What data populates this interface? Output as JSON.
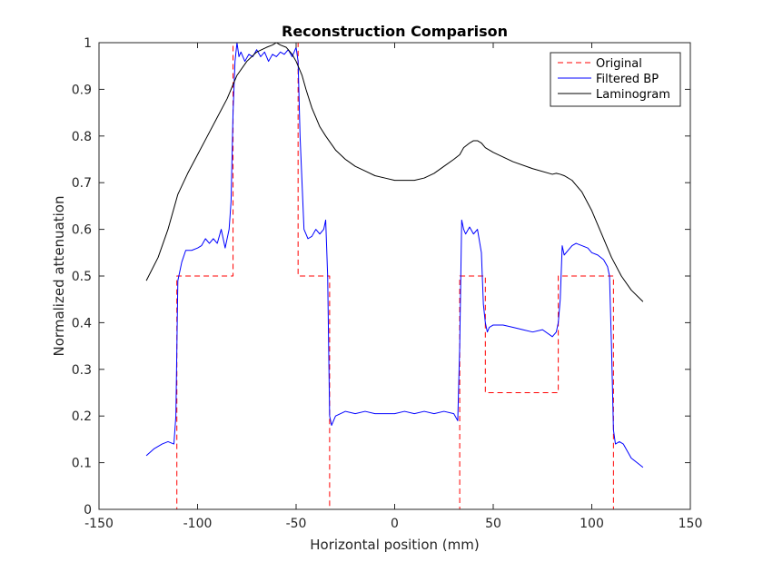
{
  "chart_data": {
    "type": "line",
    "title": "Reconstruction Comparison",
    "xlabel": "Horizontal position (mm)",
    "ylabel": "Normalized attenuation",
    "xlim": [
      -150,
      150
    ],
    "ylim": [
      0,
      1
    ],
    "xticks": [
      -150,
      -100,
      -50,
      0,
      50,
      100,
      150
    ],
    "yticks": [
      0,
      0.1,
      0.2,
      0.3,
      0.4,
      0.5,
      0.6,
      0.7,
      0.8,
      0.9,
      1
    ],
    "xtick_labels": [
      "-150",
      "-100",
      "-50",
      "0",
      "50",
      "100",
      "150"
    ],
    "ytick_labels": [
      "0",
      "0.1",
      "0.2",
      "0.3",
      "0.4",
      "0.5",
      "0.6",
      "0.7",
      "0.8",
      "0.9",
      "1"
    ],
    "grid": false,
    "legend_position": "top-right",
    "series": [
      {
        "name": "Original",
        "color": "#ff0000",
        "style": "dashed",
        "x": [
          -126,
          -110.5,
          -110.5,
          -82,
          -82,
          -49,
          -49,
          -33,
          -33,
          33,
          33,
          46,
          46,
          83,
          83,
          111,
          111,
          126
        ],
        "y": [
          0,
          0,
          0.5,
          0.5,
          1,
          1,
          0.5,
          0.5,
          0,
          0,
          0.5,
          0.5,
          0.25,
          0.25,
          0.5,
          0.5,
          0,
          0
        ]
      },
      {
        "name": "Filtered BP",
        "color": "#0000ff",
        "style": "solid",
        "x": [
          -126,
          -122,
          -118,
          -115,
          -112,
          -111,
          -110,
          -108,
          -106,
          -103,
          -100,
          -98,
          -96,
          -94,
          -92,
          -90,
          -88,
          -86,
          -84,
          -83,
          -82,
          -81,
          -80,
          -79,
          -78,
          -76,
          -74,
          -72,
          -70,
          -68,
          -66,
          -64,
          -62,
          -60,
          -58,
          -56,
          -54,
          -52,
          -51,
          -50,
          -49,
          -48,
          -47,
          -46,
          -45,
          -44,
          -42,
          -40,
          -38,
          -36,
          -35,
          -34,
          -33,
          -32,
          -30,
          -25,
          -20,
          -15,
          -10,
          -5,
          0,
          5,
          10,
          15,
          20,
          25,
          30,
          32,
          33,
          34,
          35,
          36,
          38,
          40,
          42,
          44,
          45,
          46,
          47,
          48,
          50,
          55,
          60,
          65,
          70,
          75,
          80,
          82,
          83,
          84,
          85,
          86,
          88,
          90,
          92,
          95,
          98,
          100,
          103,
          106,
          108,
          109,
          110,
          111,
          112,
          114,
          116,
          118,
          120,
          123,
          126
        ],
        "y": [
          0.115,
          0.13,
          0.14,
          0.145,
          0.14,
          0.2,
          0.49,
          0.53,
          0.555,
          0.555,
          0.56,
          0.565,
          0.58,
          0.57,
          0.58,
          0.57,
          0.6,
          0.56,
          0.6,
          0.66,
          0.85,
          0.96,
          1.0,
          0.97,
          0.98,
          0.96,
          0.975,
          0.97,
          0.985,
          0.97,
          0.98,
          0.96,
          0.975,
          0.97,
          0.98,
          0.975,
          0.985,
          0.97,
          0.98,
          0.99,
          0.96,
          0.8,
          0.7,
          0.6,
          0.59,
          0.58,
          0.585,
          0.6,
          0.59,
          0.6,
          0.62,
          0.5,
          0.2,
          0.18,
          0.2,
          0.21,
          0.205,
          0.21,
          0.205,
          0.205,
          0.205,
          0.21,
          0.205,
          0.21,
          0.205,
          0.21,
          0.205,
          0.19,
          0.35,
          0.62,
          0.6,
          0.59,
          0.605,
          0.59,
          0.6,
          0.55,
          0.44,
          0.4,
          0.38,
          0.39,
          0.395,
          0.395,
          0.39,
          0.385,
          0.38,
          0.385,
          0.37,
          0.38,
          0.4,
          0.45,
          0.565,
          0.545,
          0.555,
          0.565,
          0.57,
          0.565,
          0.56,
          0.55,
          0.545,
          0.535,
          0.52,
          0.5,
          0.35,
          0.17,
          0.14,
          0.145,
          0.14,
          0.125,
          0.11,
          0.1,
          0.09
        ]
      },
      {
        "name": "Laminogram",
        "color": "#000000",
        "style": "solid",
        "x": [
          -126,
          -120,
          -115,
          -110,
          -105,
          -100,
          -95,
          -90,
          -85,
          -80,
          -75,
          -70,
          -65,
          -62,
          -60,
          -58,
          -55,
          -52,
          -50,
          -47,
          -45,
          -42,
          -40,
          -38,
          -35,
          -30,
          -25,
          -20,
          -15,
          -10,
          -5,
          0,
          5,
          10,
          15,
          20,
          25,
          30,
          33,
          35,
          38,
          40,
          42,
          44,
          46,
          50,
          60,
          70,
          80,
          82,
          84,
          86,
          90,
          95,
          100,
          105,
          110,
          115,
          120,
          126
        ],
        "y": [
          0.49,
          0.54,
          0.6,
          0.675,
          0.72,
          0.76,
          0.8,
          0.84,
          0.88,
          0.93,
          0.96,
          0.98,
          0.99,
          0.995,
          1.0,
          0.995,
          0.99,
          0.975,
          0.96,
          0.93,
          0.9,
          0.86,
          0.84,
          0.82,
          0.8,
          0.77,
          0.75,
          0.735,
          0.725,
          0.715,
          0.71,
          0.705,
          0.705,
          0.705,
          0.71,
          0.72,
          0.735,
          0.75,
          0.76,
          0.775,
          0.785,
          0.79,
          0.79,
          0.785,
          0.775,
          0.765,
          0.745,
          0.73,
          0.718,
          0.72,
          0.718,
          0.715,
          0.705,
          0.68,
          0.64,
          0.59,
          0.54,
          0.5,
          0.47,
          0.445
        ]
      }
    ]
  }
}
